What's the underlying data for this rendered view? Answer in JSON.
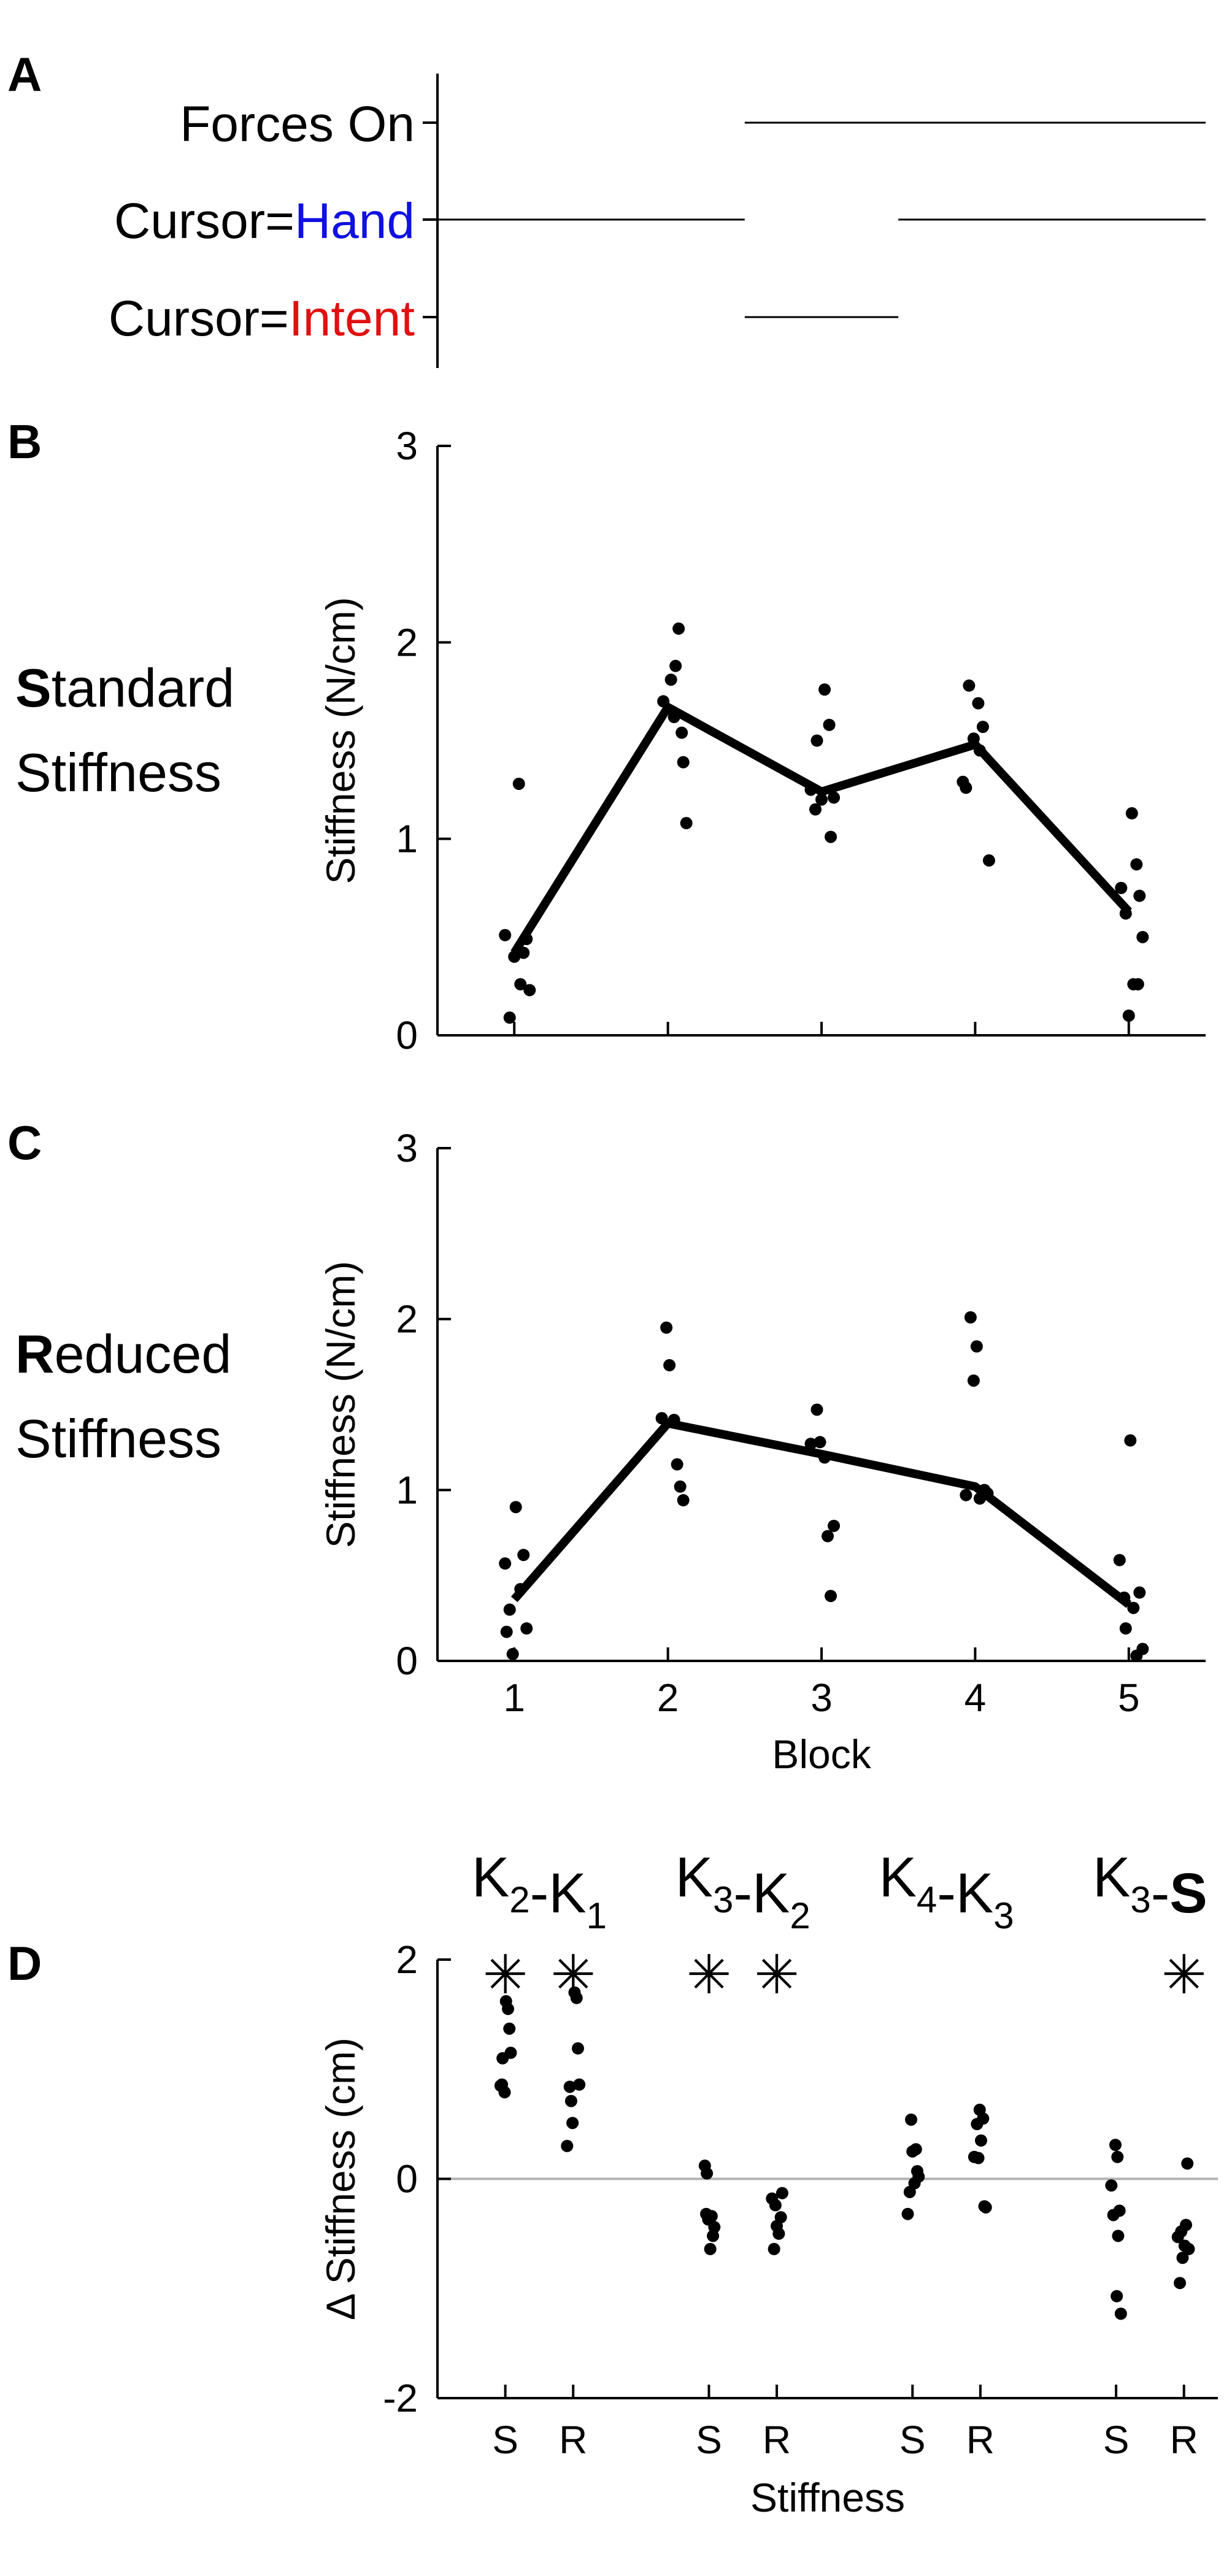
{
  "chart_data": [
    {
      "panel": "A",
      "type": "timeline",
      "rows": [
        {
          "parts": [
            {
              "text": "Forces On",
              "color": "#000000"
            }
          ],
          "segments": [
            [
              2,
              5
            ]
          ]
        },
        {
          "parts": [
            {
              "text": "Cursor=",
              "color": "#000000"
            },
            {
              "text": "Hand",
              "color": "#1010e0"
            }
          ],
          "segments": [
            [
              0,
              2
            ],
            [
              3,
              5
            ]
          ]
        },
        {
          "parts": [
            {
              "text": "Cursor=",
              "color": "#000000"
            },
            {
              "text": "Intent",
              "color": "#e01010"
            }
          ],
          "segments": [
            [
              2,
              3
            ]
          ]
        }
      ]
    },
    {
      "panel": "B",
      "type": "scatter",
      "side_label": {
        "bold": "S",
        "rest": "tandard",
        "line2": "Stiffness"
      },
      "ylabel": "Stiffness (N/cm)",
      "xlabel": "",
      "ylim": [
        0,
        3
      ],
      "yticks": [
        "0",
        "1",
        "2",
        "3"
      ],
      "xlim": [
        0.5,
        5.5
      ],
      "xticks": [],
      "points": [
        [
          0.94,
          0.51
        ],
        [
          1.03,
          1.28
        ],
        [
          1.06,
          0.42
        ],
        [
          1.0,
          0.4
        ],
        [
          1.04,
          0.26
        ],
        [
          0.97,
          0.09
        ],
        [
          1.08,
          0.49
        ],
        [
          1.1,
          0.23
        ],
        [
          1.97,
          1.7
        ],
        [
          2.02,
          1.81
        ],
        [
          2.05,
          1.88
        ],
        [
          2.07,
          2.07
        ],
        [
          2.04,
          1.62
        ],
        [
          2.09,
          1.54
        ],
        [
          2.1,
          1.39
        ],
        [
          2.12,
          1.08
        ],
        [
          2.93,
          1.25
        ],
        [
          2.97,
          1.5
        ],
        [
          3.02,
          1.76
        ],
        [
          3.05,
          1.58
        ],
        [
          2.96,
          1.15
        ],
        [
          3.0,
          1.2
        ],
        [
          3.08,
          1.21
        ],
        [
          3.06,
          1.01
        ],
        [
          3.92,
          1.29
        ],
        [
          3.94,
          1.26
        ],
        [
          3.96,
          1.78
        ],
        [
          3.99,
          1.51
        ],
        [
          4.02,
          1.69
        ],
        [
          4.05,
          1.57
        ],
        [
          4.03,
          1.45
        ],
        [
          4.09,
          0.89
        ],
        [
          4.95,
          0.75
        ],
        [
          4.98,
          0.62
        ],
        [
          5.0,
          0.1
        ],
        [
          5.02,
          1.13
        ],
        [
          5.05,
          0.87
        ],
        [
          5.07,
          0.71
        ],
        [
          5.09,
          0.5
        ],
        [
          5.06,
          0.26
        ],
        [
          5.03,
          0.26
        ]
      ],
      "mean_line": {
        "x": [
          1,
          2,
          3,
          4,
          5
        ],
        "y": [
          0.42,
          1.67,
          1.24,
          1.48,
          0.63
        ]
      }
    },
    {
      "panel": "C",
      "type": "scatter",
      "side_label": {
        "bold": "R",
        "rest": "educed",
        "line2": "Stiffness"
      },
      "ylabel": "Stiffness (N/cm)",
      "xlabel": "Block",
      "ylim": [
        0,
        3
      ],
      "yticks": [
        "0",
        "1",
        "2",
        "3"
      ],
      "xlim": [
        0.5,
        5.5
      ],
      "xticks": [
        "1",
        "2",
        "3",
        "4",
        "5"
      ],
      "points": [
        [
          0.94,
          0.57
        ],
        [
          0.97,
          0.3
        ],
        [
          0.95,
          0.17
        ],
        [
          0.99,
          0.04
        ],
        [
          1.01,
          0.9
        ],
        [
          1.04,
          0.42
        ],
        [
          1.06,
          0.62
        ],
        [
          1.08,
          0.19
        ],
        [
          1.96,
          1.42
        ],
        [
          1.99,
          1.95
        ],
        [
          2.01,
          1.73
        ],
        [
          2.04,
          1.41
        ],
        [
          2.06,
          1.15
        ],
        [
          2.08,
          1.02
        ],
        [
          2.1,
          0.94
        ],
        [
          2.93,
          1.27
        ],
        [
          2.97,
          1.47
        ],
        [
          2.99,
          1.28
        ],
        [
          3.02,
          1.19
        ],
        [
          3.04,
          0.73
        ],
        [
          3.06,
          0.38
        ],
        [
          3.08,
          0.79
        ],
        [
          3.94,
          0.97
        ],
        [
          3.97,
          2.01
        ],
        [
          3.99,
          1.64
        ],
        [
          4.01,
          1.84
        ],
        [
          4.03,
          0.95
        ],
        [
          4.06,
          1.0
        ],
        [
          4.08,
          0.98
        ],
        [
          4.94,
          0.59
        ],
        [
          4.97,
          0.37
        ],
        [
          4.98,
          0.19
        ],
        [
          5.01,
          1.29
        ],
        [
          5.03,
          0.31
        ],
        [
          5.05,
          0.03
        ],
        [
          5.07,
          0.4
        ],
        [
          5.09,
          0.07
        ]
      ],
      "mean_line": {
        "x": [
          1,
          2,
          3,
          4,
          5
        ],
        "y": [
          0.36,
          1.39,
          1.21,
          1.02,
          0.33
        ]
      }
    },
    {
      "panel": "D",
      "type": "scatter",
      "ylabel": "Δ Stiffness (cm)",
      "xlabel": "Stiffness",
      "ylim": [
        -2,
        2
      ],
      "yticks": [
        "-2",
        "0",
        "2"
      ],
      "xlim": [
        0,
        11.5
      ],
      "xticks": [
        {
          "x": 1,
          "label": "S"
        },
        {
          "x": 2,
          "label": "R"
        },
        {
          "x": 4,
          "label": "S"
        },
        {
          "x": 5,
          "label": "R"
        },
        {
          "x": 7,
          "label": "S"
        },
        {
          "x": 8,
          "label": "R"
        },
        {
          "x": 10,
          "label": "S"
        },
        {
          "x": 11,
          "label": "R"
        }
      ],
      "zero_line": 0,
      "comparisons": [
        {
          "x": 1.5,
          "parts": [
            {
              "t": "K",
              "sub": "2"
            },
            {
              "t": "-K",
              "sub": "1"
            }
          ]
        },
        {
          "x": 4.5,
          "parts": [
            {
              "t": "K",
              "sub": "3"
            },
            {
              "t": "-K",
              "sub": "2"
            }
          ]
        },
        {
          "x": 7.5,
          "parts": [
            {
              "t": "K",
              "sub": "4"
            },
            {
              "t": "-K",
              "sub": "3"
            }
          ]
        },
        {
          "x": 10.5,
          "parts": [
            {
              "t": "K",
              "sub": "3"
            },
            {
              "t": "-"
            },
            {
              "t": "S",
              "bold": true
            }
          ]
        }
      ],
      "significance_marker": "✳",
      "significance": [
        {
          "x": 1,
          "y": 1.86
        },
        {
          "x": 2,
          "y": 1.86
        },
        {
          "x": 4,
          "y": 1.86
        },
        {
          "x": 5,
          "y": 1.86
        },
        {
          "x": 11,
          "y": 1.86
        }
      ],
      "points": [
        [
          0.93,
          0.85
        ],
        [
          0.96,
          1.1
        ],
        [
          0.99,
          0.79
        ],
        [
          1.01,
          1.62
        ],
        [
          1.04,
          1.55
        ],
        [
          1.06,
          1.37
        ],
        [
          1.08,
          1.15
        ],
        [
          0.95,
          0.86
        ],
        [
          1.91,
          0.3
        ],
        [
          1.95,
          0.84
        ],
        [
          1.97,
          0.71
        ],
        [
          1.99,
          0.51
        ],
        [
          2.02,
          1.7
        ],
        [
          2.05,
          1.65
        ],
        [
          2.07,
          1.19
        ],
        [
          2.09,
          0.86
        ],
        [
          3.94,
          0.12
        ],
        [
          3.97,
          0.05
        ],
        [
          3.96,
          -0.32
        ],
        [
          3.99,
          -0.37
        ],
        [
          4.02,
          -0.64
        ],
        [
          4.04,
          -0.34
        ],
        [
          4.06,
          -0.52
        ],
        [
          4.08,
          -0.44
        ],
        [
          4.93,
          -0.18
        ],
        [
          4.96,
          -0.64
        ],
        [
          4.98,
          -0.24
        ],
        [
          5.0,
          -0.43
        ],
        [
          5.03,
          -0.5
        ],
        [
          5.06,
          -0.35
        ],
        [
          5.08,
          -0.13
        ],
        [
          6.93,
          -0.32
        ],
        [
          6.96,
          -0.12
        ],
        [
          6.98,
          0.54
        ],
        [
          7.0,
          0.25
        ],
        [
          7.03,
          -0.04
        ],
        [
          7.05,
          0.27
        ],
        [
          7.07,
          0.07
        ],
        [
          7.09,
          0.02
        ],
        [
          7.91,
          0.2
        ],
        [
          7.95,
          0.5
        ],
        [
          7.97,
          0.19
        ],
        [
          7.99,
          0.63
        ],
        [
          8.01,
          0.35
        ],
        [
          8.04,
          0.55
        ],
        [
          8.06,
          -0.25
        ],
        [
          8.08,
          -0.26
        ],
        [
          9.93,
          -0.06
        ],
        [
          9.96,
          -0.33
        ],
        [
          9.99,
          0.31
        ],
        [
          10.01,
          -1.07
        ],
        [
          10.03,
          -0.52
        ],
        [
          10.05,
          -0.29
        ],
        [
          10.07,
          -1.23
        ],
        [
          10.02,
          0.2
        ],
        [
          10.91,
          -0.53
        ],
        [
          10.94,
          -0.95
        ],
        [
          10.96,
          -0.48
        ],
        [
          10.98,
          -0.72
        ],
        [
          11.01,
          -0.61
        ],
        [
          11.03,
          -0.42
        ],
        [
          11.05,
          0.14
        ],
        [
          11.07,
          -0.64
        ]
      ]
    }
  ]
}
